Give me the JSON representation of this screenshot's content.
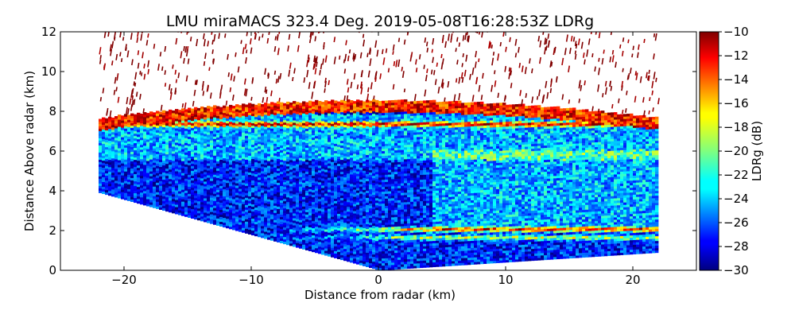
{
  "chart_data": {
    "type": "heatmap",
    "title": "LMU miraMACS 323.4 Deg. 2019-05-08T16:28:53Z  LDRg",
    "xlabel": "Distance from radar (km)",
    "ylabel": "Distance Above radar  (km)",
    "xlim": [
      -25,
      25
    ],
    "ylim": [
      0,
      12
    ],
    "xticks": [
      -20,
      -10,
      0,
      10,
      20
    ],
    "xtick_labels": [
      "−20",
      "−10",
      "0",
      "10",
      "20"
    ],
    "yticks": [
      0,
      2,
      4,
      6,
      8,
      10,
      12
    ],
    "ytick_labels": [
      "0",
      "2",
      "4",
      "6",
      "8",
      "10",
      "12"
    ],
    "colorbar": {
      "label": "LDRg (dB)",
      "range": [
        -30,
        -10
      ],
      "ticks": [
        -10,
        -12,
        -14,
        -16,
        -18,
        -20,
        -22,
        -24,
        -26,
        -28,
        -30
      ],
      "tick_labels": [
        "−10",
        "−12",
        "−14",
        "−16",
        "−18",
        "−20",
        "−22",
        "−24",
        "−26",
        "−28",
        "−30"
      ],
      "colormap": "jet"
    },
    "scan": {
      "x_range_km": [
        -22,
        22
      ],
      "edge_heights_km": [
        3.9,
        0.9
      ],
      "cloud_top_km": 8.5,
      "layers": [
        {
          "name": "",
          "height_km": 1.6,
          "ldr_db": -18
        },
        {
          "name": "",
          "height_km": 2.0,
          "ldr_db": -13
        },
        {
          "name": "",
          "height_km": 7.3,
          "ldr_db": -13
        },
        {
          "name": "",
          "height_km": 8.4,
          "ldr_db": -11
        }
      ],
      "background_ldr_db": -27
    }
  }
}
